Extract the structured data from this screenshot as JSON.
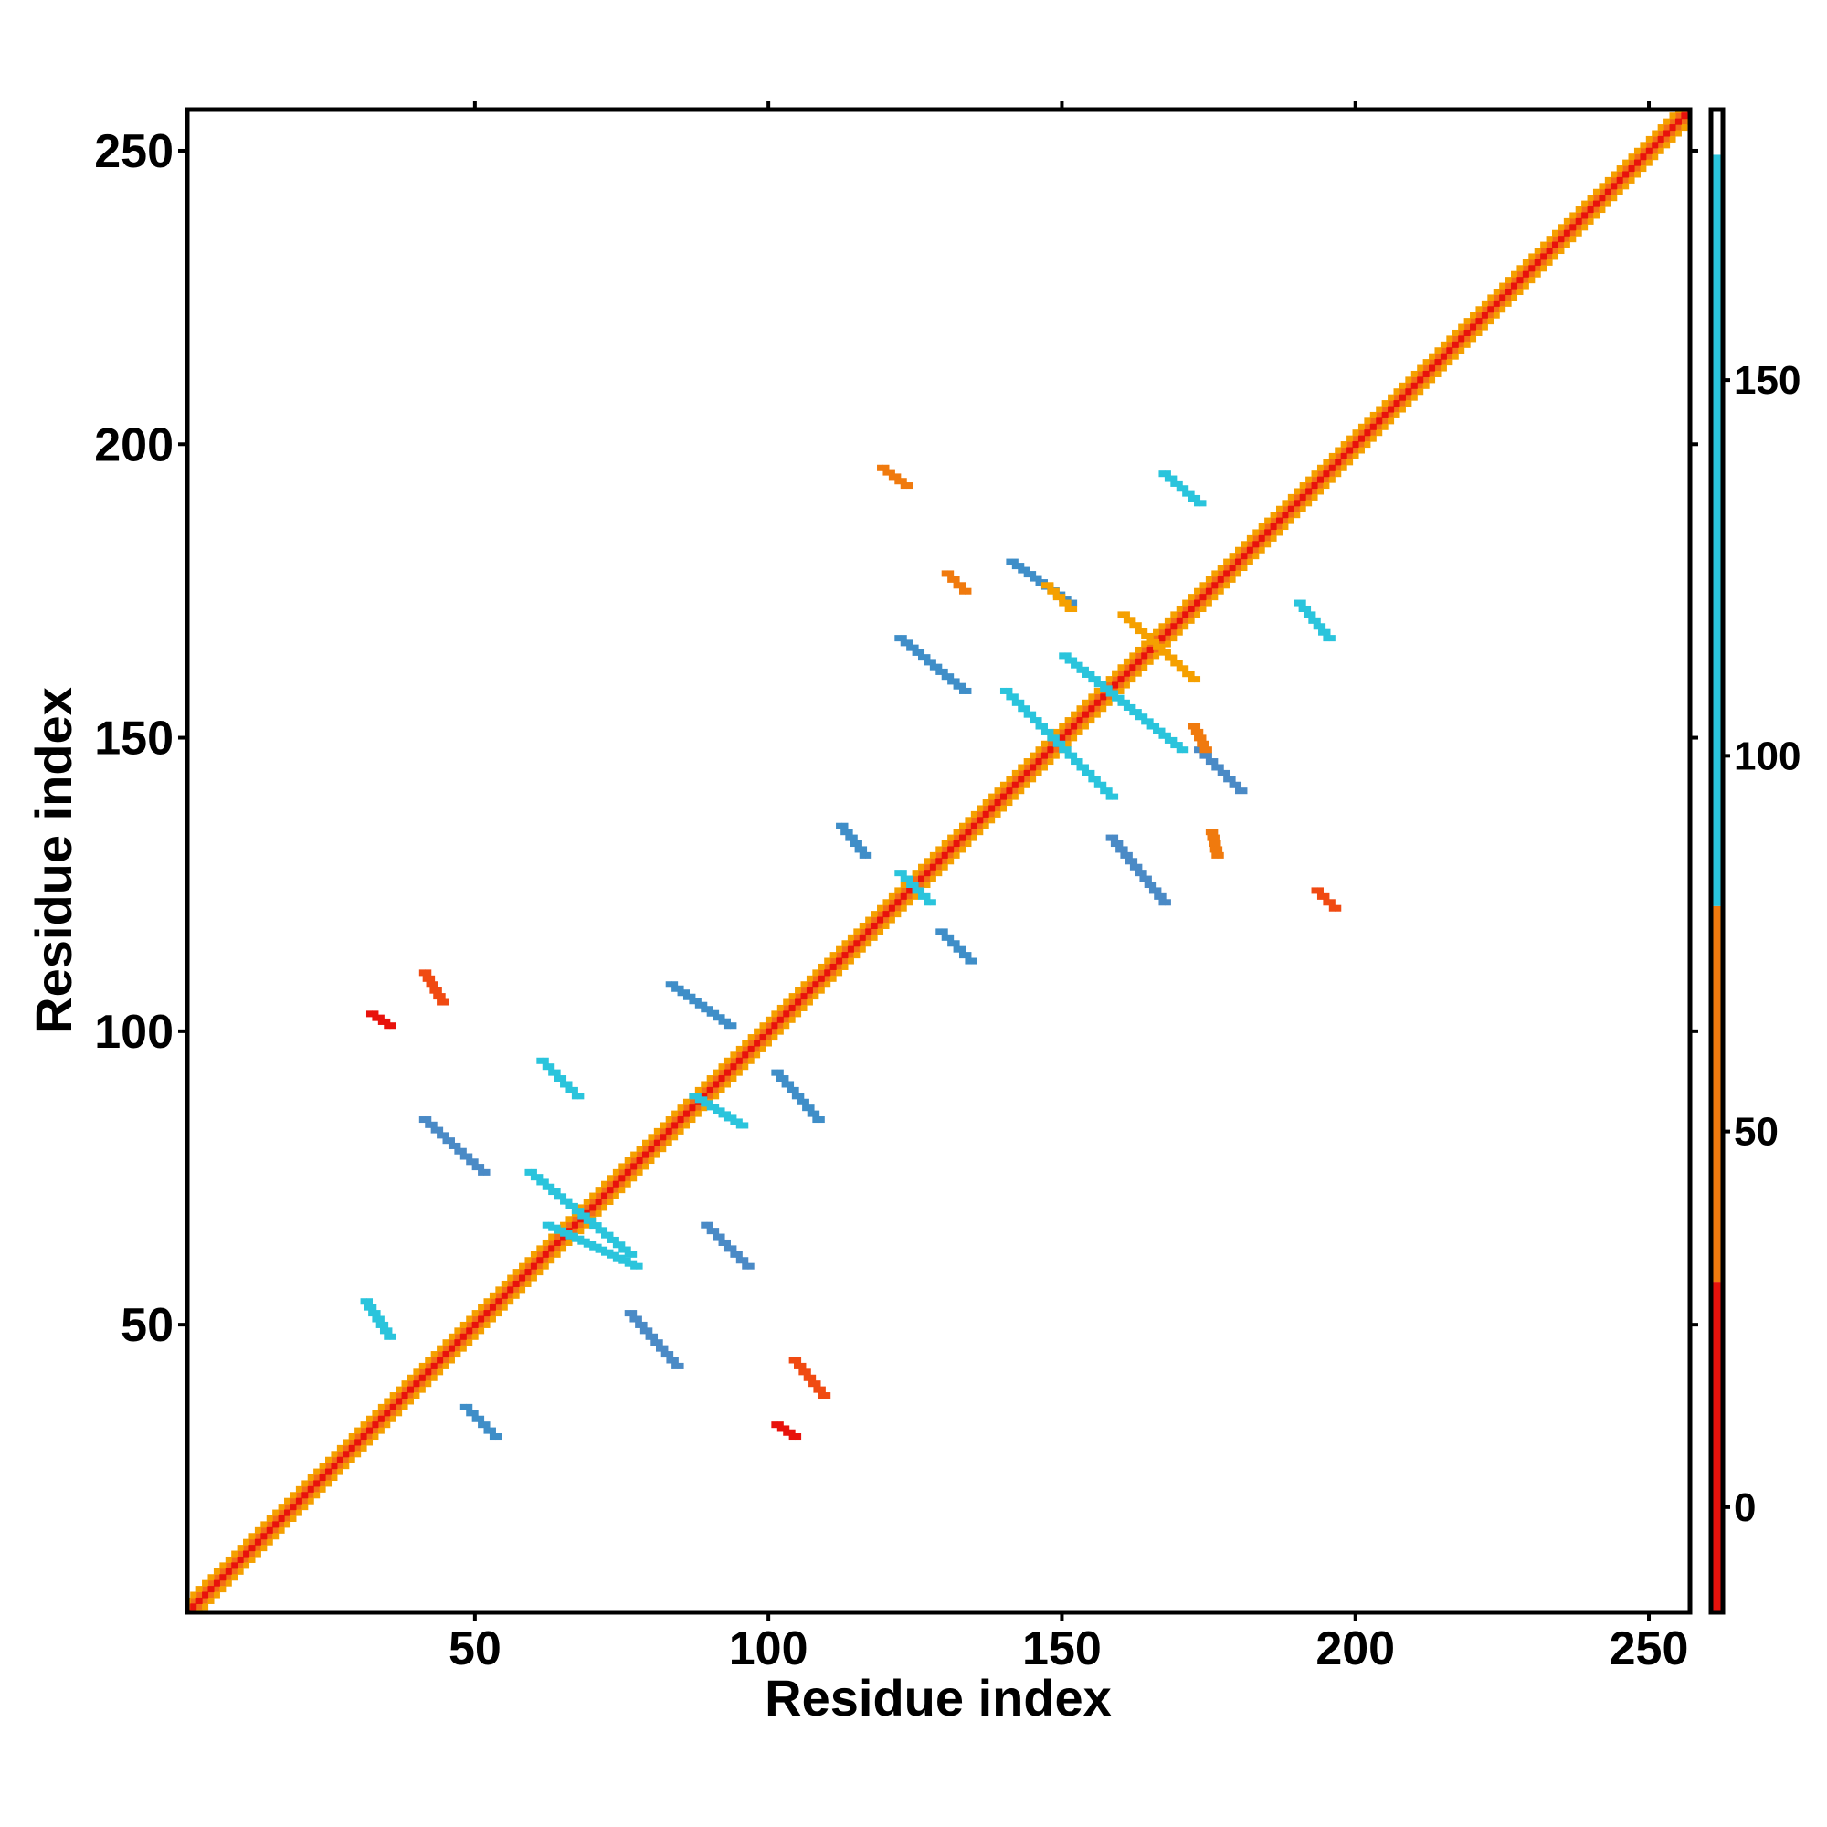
{
  "chart_data": {
    "type": "heatmap",
    "title": "",
    "xlabel": "Residue index",
    "ylabel": "Residue index",
    "xlim": [
      1,
      257
    ],
    "ylim": [
      1,
      257
    ],
    "x_ticks": [
      "50",
      "100",
      "150",
      "200",
      "250"
    ],
    "y_ticks": [
      "50",
      "100",
      "150",
      "200",
      "250"
    ],
    "x_tick_values": [
      50,
      100,
      150,
      200,
      250
    ],
    "y_tick_values": [
      50,
      100,
      150,
      200,
      250
    ],
    "colorbar": {
      "range": [
        -14,
        186
      ],
      "tick_labels": [
        "0",
        "50",
        "100",
        "150"
      ],
      "tick_values": [
        0,
        50,
        100,
        150
      ],
      "bands": [
        {
          "from": -14,
          "to": 30,
          "color": "#e8120c"
        },
        {
          "from": 30,
          "to": 80,
          "color": "#f07a0e"
        },
        {
          "from": 80,
          "to": 180,
          "color": "#2ac4dc"
        },
        {
          "from": 180,
          "to": 186,
          "color": "#ffffff"
        }
      ]
    },
    "diagonal": {
      "from": 1,
      "to": 257,
      "bands": [
        {
          "offset": 1,
          "color": "#f26e18"
        },
        {
          "offset": 2,
          "color": "#f5a000"
        },
        {
          "offset": 0,
          "color": "#e8120c"
        }
      ]
    },
    "regions": [
      {
        "x1": 31,
        "y1": 54,
        "x2": 35,
        "y2": 48,
        "color": "#2ac4dc"
      },
      {
        "x1": 48,
        "y1": 36,
        "x2": 53,
        "y2": 31,
        "color": "#3f8ec8"
      },
      {
        "x1": 41,
        "y1": 85,
        "x2": 51,
        "y2": 76,
        "color": "#4a8ac6"
      },
      {
        "x1": 61,
        "y1": 95,
        "x2": 67,
        "y2": 89,
        "color": "#2ac4dc"
      },
      {
        "x1": 59,
        "y1": 76,
        "x2": 76,
        "y2": 62,
        "color": "#2ac4dc"
      },
      {
        "x1": 76,
        "y1": 52,
        "x2": 84,
        "y2": 43,
        "color": "#4a8ac6"
      },
      {
        "x1": 89,
        "y1": 67,
        "x2": 96,
        "y2": 60,
        "color": "#4a8ac6"
      },
      {
        "x1": 83,
        "y1": 108,
        "x2": 93,
        "y2": 101,
        "color": "#3f8ec8"
      },
      {
        "x1": 101,
        "y1": 93,
        "x2": 108,
        "y2": 85,
        "color": "#3f8ec8"
      },
      {
        "x1": 41,
        "y1": 110,
        "x2": 44,
        "y2": 105,
        "color": "#f04a12"
      },
      {
        "x1": 104,
        "y1": 44,
        "x2": 109,
        "y2": 38,
        "color": "#f04a12"
      },
      {
        "x1": 112,
        "y1": 135,
        "x2": 116,
        "y2": 130,
        "color": "#3f8ec8"
      },
      {
        "x1": 122,
        "y1": 127,
        "x2": 127,
        "y2": 122,
        "color": "#2ac4dc"
      },
      {
        "x1": 129,
        "y1": 117,
        "x2": 134,
        "y2": 112,
        "color": "#3f8ec8"
      },
      {
        "x1": 122,
        "y1": 167,
        "x2": 133,
        "y2": 158,
        "color": "#3f8ec8"
      },
      {
        "x1": 140,
        "y1": 158,
        "x2": 158,
        "y2": 140,
        "color": "#2ac4dc"
      },
      {
        "x1": 141,
        "y1": 180,
        "x2": 151,
        "y2": 173,
        "color": "#3f8ec8"
      },
      {
        "x1": 158,
        "y1": 133,
        "x2": 167,
        "y2": 122,
        "color": "#4a8ac6"
      },
      {
        "x1": 173,
        "y1": 148,
        "x2": 180,
        "y2": 141,
        "color": "#4a8ac6"
      },
      {
        "x1": 167,
        "y1": 195,
        "x2": 173,
        "y2": 190,
        "color": "#2ac4dc"
      },
      {
        "x1": 190,
        "y1": 173,
        "x2": 195,
        "y2": 167,
        "color": "#2ac4dc"
      },
      {
        "x1": 119,
        "y1": 196,
        "x2": 123,
        "y2": 193,
        "color": "#f07a0e"
      },
      {
        "x1": 193,
        "y1": 124,
        "x2": 196,
        "y2": 121,
        "color": "#f04a12"
      },
      {
        "x1": 172,
        "y1": 152,
        "x2": 174,
        "y2": 148,
        "color": "#f07a0e"
      },
      {
        "x1": 175,
        "y1": 134,
        "x2": 176,
        "y2": 130,
        "color": "#f07a0e"
      },
      {
        "x1": 130,
        "y1": 178,
        "x2": 133,
        "y2": 175,
        "color": "#f07a0e"
      },
      {
        "x1": 147,
        "y1": 176,
        "x2": 151,
        "y2": 172,
        "color": "#f5a000"
      },
      {
        "x1": 150,
        "y1": 164,
        "x2": 170,
        "y2": 148,
        "color": "#2ac4dc"
      },
      {
        "x1": 160,
        "y1": 171,
        "x2": 172,
        "y2": 160,
        "color": "#f5a000"
      },
      {
        "x1": 87,
        "y1": 89,
        "x2": 95,
        "y2": 84,
        "color": "#2ac4dc"
      },
      {
        "x1": 62,
        "y1": 67,
        "x2": 77,
        "y2": 60,
        "color": "#2ac4dc"
      },
      {
        "x1": 101,
        "y1": 33,
        "x2": 104,
        "y2": 31,
        "color": "#e8120c"
      },
      {
        "x1": 32,
        "y1": 103,
        "x2": 35,
        "y2": 101,
        "color": "#e8120c"
      }
    ]
  }
}
